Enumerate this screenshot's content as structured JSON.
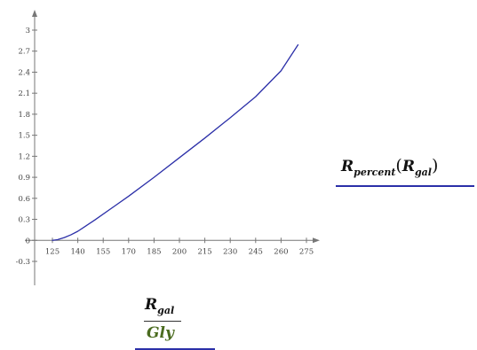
{
  "chart_data": {
    "type": "line",
    "xlim": [
      125,
      275
    ],
    "ylim": [
      -0.3,
      3
    ],
    "x_ticks": [
      "125",
      "140",
      "155",
      "170",
      "185",
      "200",
      "215",
      "230",
      "245",
      "260",
      "275"
    ],
    "y_ticks": [
      "-0.3",
      "0",
      "0.3",
      "0.6",
      "0.9",
      "1.2",
      "1.5",
      "1.8",
      "2.1",
      "2.4",
      "2.7",
      "3"
    ],
    "series": [
      {
        "color": "#2b2fa8",
        "x": [
          125,
          128,
          132,
          136,
          140,
          145,
          150,
          160,
          170,
          185,
          200,
          215,
          230,
          245,
          260,
          270
        ],
        "y": [
          0.0,
          0.01,
          0.04,
          0.08,
          0.13,
          0.21,
          0.29,
          0.46,
          0.63,
          0.9,
          1.18,
          1.46,
          1.75,
          2.05,
          2.42,
          2.79
        ]
      }
    ],
    "grid": false
  },
  "y_expression": {
    "symbol": "R",
    "subscript": "percent",
    "arg_symbol": "R",
    "arg_subscript": "gal"
  },
  "x_expression": {
    "numerator_symbol": "R",
    "numerator_subscript": "gal",
    "denominator": "Gly"
  },
  "colors": {
    "line": "#2b2fa8",
    "axis": "#777777",
    "unit": "#4a6b1f"
  }
}
